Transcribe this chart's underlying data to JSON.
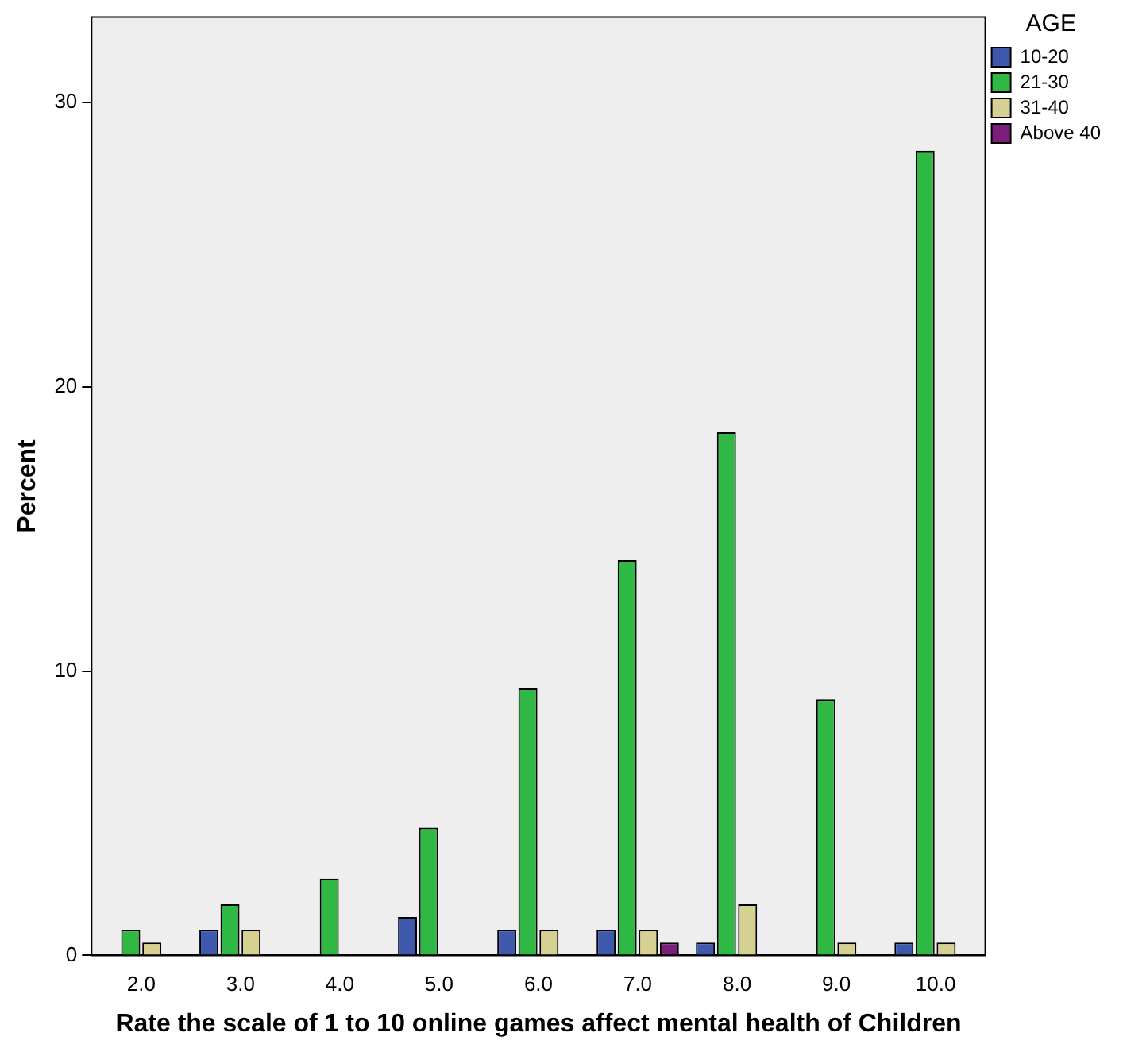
{
  "chart_data": {
    "type": "bar",
    "xlabel": "Rate the scale of 1 to 10 online games affect mental health of Children",
    "ylabel": "Percent",
    "legend_title": "AGE",
    "categories": [
      "2.0",
      "3.0",
      "4.0",
      "5.0",
      "6.0",
      "7.0",
      "8.0",
      "9.0",
      "10.0"
    ],
    "series": [
      {
        "name": "10-20",
        "color": "#3e58ac",
        "values": [
          0,
          0.9,
          0,
          1.35,
          0.9,
          0.9,
          0.45,
          0,
          0.45
        ]
      },
      {
        "name": "21-30",
        "color": "#2fb844",
        "values": [
          0.9,
          1.8,
          2.7,
          4.5,
          9.4,
          13.9,
          18.4,
          9.0,
          28.3
        ]
      },
      {
        "name": "31-40",
        "color": "#d6d193",
        "values": [
          0.45,
          0.9,
          0,
          0,
          0.9,
          0.9,
          1.8,
          0.45,
          0.45
        ]
      },
      {
        "name": "Above 40",
        "color": "#7c1f7c",
        "values": [
          0,
          0,
          0,
          0,
          0,
          0.45,
          0,
          0,
          0
        ]
      }
    ],
    "ylim": [
      0,
      33
    ],
    "yticks": [
      0,
      10,
      20,
      30
    ],
    "grid": false,
    "legend": "right"
  }
}
